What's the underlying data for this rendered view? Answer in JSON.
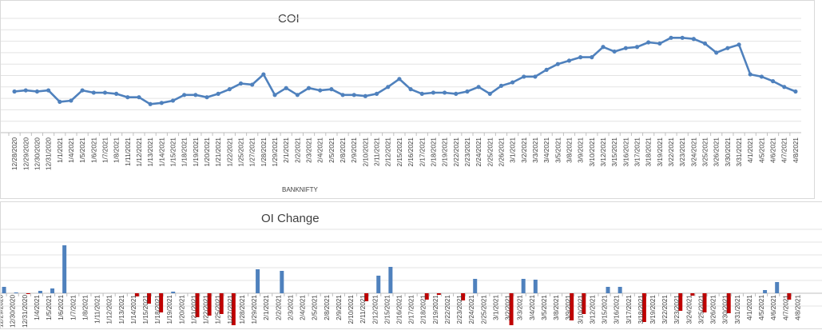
{
  "chart_data": [
    {
      "type": "line",
      "title": "COI",
      "xlabel": "BANKNIFTY",
      "ylabel": "",
      "grid": true,
      "legend": "none",
      "categories": [
        "12/28/2020",
        "12/29/2020",
        "12/30/2020",
        "12/31/2020",
        "1/1/2021",
        "1/4/2021",
        "1/5/2021",
        "1/6/2021",
        "1/7/2021",
        "1/8/2021",
        "1/11/2021",
        "1/12/2021",
        "1/13/2021",
        "1/14/2021",
        "1/15/2021",
        "1/18/2021",
        "1/19/2021",
        "1/20/2021",
        "1/21/2021",
        "1/22/2021",
        "1/25/2021",
        "1/27/2021",
        "1/28/2021",
        "1/29/2021",
        "2/1/2021",
        "2/2/2021",
        "2/3/2021",
        "2/4/2021",
        "2/5/2021",
        "2/8/2021",
        "2/9/2021",
        "2/10/2021",
        "2/11/2021",
        "2/12/2021",
        "2/15/2021",
        "2/16/2021",
        "2/17/2021",
        "2/18/2021",
        "2/19/2021",
        "2/22/2021",
        "2/23/2021",
        "2/24/2021",
        "2/25/2021",
        "2/26/2021",
        "3/1/2021",
        "3/2/2021",
        "3/3/2021",
        "3/4/2021",
        "3/5/2021",
        "3/8/2021",
        "3/9/2021",
        "3/10/2021",
        "3/12/2021",
        "3/15/2021",
        "3/16/2021",
        "3/17/2021",
        "3/18/2021",
        "3/19/2021",
        "3/22/2021",
        "3/23/2021",
        "3/24/2021",
        "3/25/2021",
        "3/26/2021",
        "3/30/2021",
        "3/31/2021",
        "4/1/2021",
        "4/5/2021",
        "4/6/2021",
        "4/7/2021",
        "4/8/2021"
      ],
      "series": [
        {
          "values": [
            36,
            37,
            36,
            37,
            27,
            28,
            37,
            35,
            35,
            34,
            31,
            31,
            25,
            26,
            28,
            33,
            33,
            31,
            34,
            38,
            43,
            42,
            51,
            33,
            39,
            33,
            39,
            37,
            38,
            33,
            33,
            32,
            34,
            40,
            47,
            38,
            34,
            35,
            35,
            34,
            36,
            40,
            34,
            41,
            44,
            49,
            49,
            55,
            60,
            63,
            66,
            66,
            75,
            71,
            74,
            75,
            79,
            78,
            83,
            83,
            82,
            78,
            70,
            74,
            77,
            51,
            49,
            45,
            40,
            36
          ]
        }
      ],
      "colors": {
        "line": "#4f81bd"
      }
    },
    {
      "type": "bar",
      "title": "OI Change",
      "xlabel": "",
      "ylabel": "",
      "grid": true,
      "legend": "none",
      "tick_labels": [
        "12/29/2020",
        "12/30/2020",
        "12/31/2020",
        "1/4/2021",
        "1/5/2021",
        "1/6/2021",
        "1/7/2021",
        "1/8/2021",
        "1/11/2021",
        "1/12/2021",
        "1/13/2021",
        "1/14/2021",
        "1/15/2021",
        "1/18/2021",
        "1/19/2021",
        "1/20/2021",
        "1/21/2021",
        "1/22/2021",
        "1/25/2021",
        "1/27/2021",
        "1/28/2021",
        "1/29/2021",
        "2/1/2021",
        "2/2/2021",
        "2/3/2021",
        "2/4/2021",
        "2/5/2021",
        "2/8/2021",
        "2/9/2021",
        "2/10/2021",
        "2/11/2021",
        "2/12/2021",
        "2/15/2021",
        "2/16/2021",
        "2/17/2021",
        "2/18/2021",
        "2/19/2021",
        "2/22/2021",
        "2/23/2021",
        "2/24/2021",
        "2/25/2021",
        "3/1/2021",
        "3/2/2021",
        "3/3/2021",
        "3/4/2021",
        "3/5/2021",
        "3/8/2021",
        "3/9/2021",
        "3/10/2021",
        "3/12/2021",
        "3/15/2021",
        "3/16/2021",
        "3/17/2021",
        "3/18/2021",
        "3/19/2021",
        "3/22/2021",
        "3/23/2021",
        "3/24/2021",
        "3/25/2021",
        "3/26/2021",
        "3/30/2021",
        "3/31/2021",
        "4/1/2021",
        "4/5/2021",
        "4/6/2021",
        "4/7/2021",
        "4/8/2021"
      ],
      "values": [
        8,
        1,
        -1,
        3,
        6,
        60,
        0,
        0,
        0,
        0,
        0,
        -4,
        -13,
        -24,
        2,
        0,
        -30,
        -28,
        -26,
        -40,
        0,
        30,
        0,
        28,
        0,
        0,
        0,
        0,
        0,
        0,
        -10,
        22,
        33,
        0,
        0,
        -8,
        -2,
        0,
        -9,
        18,
        0,
        0,
        -40,
        18,
        17,
        0,
        0,
        -34,
        -26,
        0,
        8,
        8,
        0,
        -36,
        0,
        0,
        -22,
        -3,
        -24,
        0,
        -25,
        0,
        0,
        4,
        14,
        -8,
        0
      ],
      "colors": {
        "positive": "#4f81bd",
        "negative": "#c00000"
      }
    }
  ]
}
